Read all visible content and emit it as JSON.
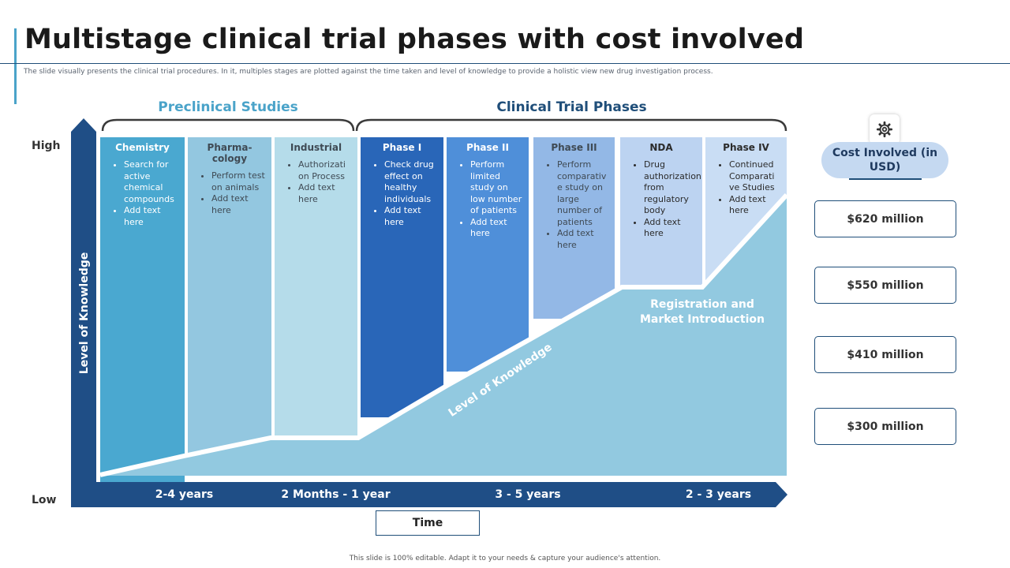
{
  "title": "Multistage clinical trial phases with cost involved",
  "subtitle": "The slide visually presents the clinical trial procedures. In it, multiples stages are plotted against the time taken and level of knowledge to provide a holistic view new drug investigation process.",
  "categories": {
    "preclinical": "Preclinical Studies",
    "clinical": "Clinical Trial Phases"
  },
  "axis": {
    "high": "High",
    "low": "Low",
    "y_label": "Level of Knowledge",
    "x_label": "Time",
    "diagonal_label": "Level of Knowledge"
  },
  "registration_label": "Registration and Market Introduction",
  "phases": [
    {
      "name": "Chemistry",
      "items": [
        "Search for active chemical compounds",
        "Add text here"
      ],
      "bg": "#4aa8d0",
      "text_color": "#ffffff"
    },
    {
      "name": "Pharma-cology",
      "items": [
        "Perform test on animals",
        "Add text here"
      ],
      "bg": "#93c7e0",
      "text_color": "#3f4a54"
    },
    {
      "name": "Industrial",
      "items": [
        "Authorizati on Process",
        "Add text here"
      ],
      "bg": "#b5dcea",
      "text_color": "#3f4a54"
    },
    {
      "name": "Phase I",
      "items": [
        "Check drug effect on healthy individuals",
        "Add text here"
      ],
      "bg": "#2966b8",
      "text_color": "#ffffff"
    },
    {
      "name": "Phase II",
      "items": [
        "Perform limited study on low number of patients",
        "Add text here"
      ],
      "bg": "#4f8fd9",
      "text_color": "#ffffff"
    },
    {
      "name": "Phase III",
      "items": [
        "Perform comparativ e study on large number of patients",
        "Add text here"
      ],
      "bg": "#93b8e6",
      "text_color": "#3f4a54"
    },
    {
      "name": "NDA",
      "items": [
        "Drug authorization from regulatory body",
        "Add text here"
      ],
      "bg": "#bcd3f1",
      "text_color": "#2b2b2b"
    },
    {
      "name": "Phase IV",
      "items": [
        "Continued Comparati ve Studies",
        "Add text here"
      ],
      "bg": "#c9ddf4",
      "text_color": "#2b2b2b"
    }
  ],
  "time_segments": [
    "2-4 years",
    "2 Months - 1 year",
    "3 - 5 years",
    "2 - 3 years"
  ],
  "cost": {
    "title": "Cost Involved (in USD)",
    "values": [
      "$620 million",
      "$550 million",
      "$410 million",
      "$300 million"
    ]
  },
  "footer": "This slide is 100% editable. Adapt it to your needs & capture your audience's attention.",
  "colors": {
    "navy": "#1f4e86",
    "knowledge_area": "#92c9e0",
    "preclinical_heading": "#4aa3c9",
    "clinical_heading": "#1f4e79",
    "cost_pill": "#c5d9f1"
  },
  "icons": {
    "settings": "gear-icon"
  }
}
